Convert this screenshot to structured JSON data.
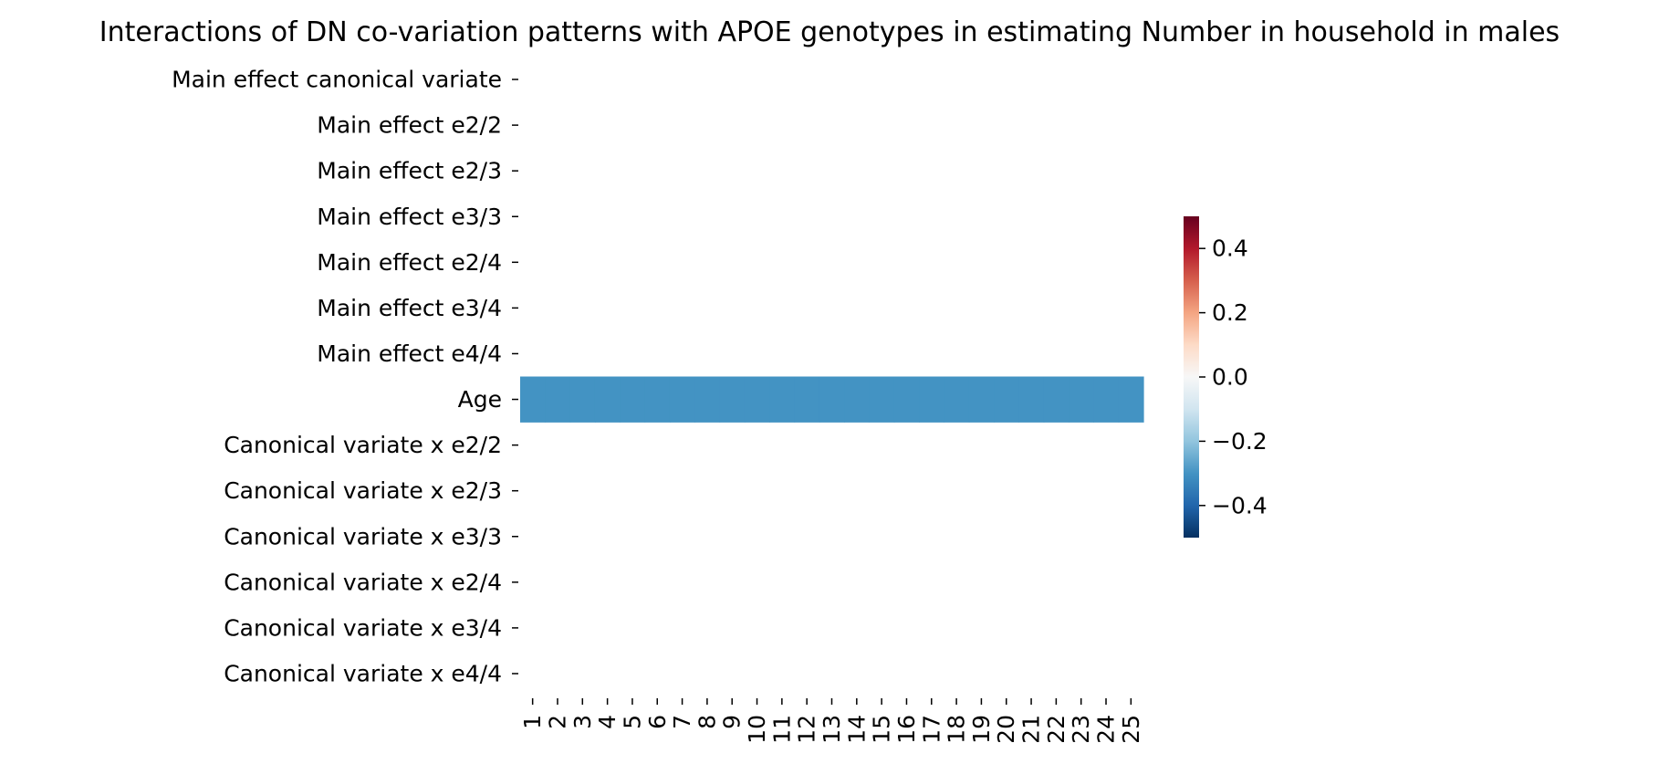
{
  "chart_data": {
    "type": "heatmap",
    "title": "Interactions of DN co-variation patterns with APOE genotypes in estimating Number in household in males",
    "xlabel": "",
    "ylabel": "",
    "columns": [
      "1",
      "2",
      "3",
      "4",
      "5",
      "6",
      "7",
      "8",
      "9",
      "10",
      "11",
      "12",
      "13",
      "14",
      "15",
      "16",
      "17",
      "18",
      "19",
      "20",
      "21",
      "22",
      "23",
      "24",
      "25"
    ],
    "rows": [
      "Main effect canonical variate",
      "Main effect e2/2",
      "Main effect e2/3",
      "Main effect e3/3",
      "Main effect e2/4",
      "Main effect e3/4",
      "Main effect e4/4",
      "Age",
      "Canonical variate x e2/2",
      "Canonical variate x e2/3",
      "Canonical variate x e3/3",
      "Canonical variate x e2/4",
      "Canonical variate x e3/4",
      "Canonical variate x e4/4"
    ],
    "values": [
      [
        null,
        null,
        null,
        null,
        null,
        null,
        null,
        null,
        null,
        null,
        null,
        null,
        null,
        null,
        null,
        null,
        null,
        null,
        null,
        null,
        null,
        null,
        null,
        null,
        null
      ],
      [
        null,
        null,
        null,
        null,
        null,
        null,
        null,
        null,
        null,
        null,
        null,
        null,
        null,
        null,
        null,
        null,
        null,
        null,
        null,
        null,
        null,
        null,
        null,
        null,
        null
      ],
      [
        null,
        null,
        null,
        null,
        null,
        null,
        null,
        null,
        null,
        null,
        null,
        null,
        null,
        null,
        null,
        null,
        null,
        null,
        null,
        null,
        null,
        null,
        null,
        null,
        null
      ],
      [
        null,
        null,
        null,
        null,
        null,
        null,
        null,
        null,
        null,
        null,
        null,
        null,
        null,
        null,
        null,
        null,
        null,
        null,
        null,
        null,
        null,
        null,
        null,
        null,
        null
      ],
      [
        null,
        null,
        null,
        null,
        null,
        null,
        null,
        null,
        null,
        null,
        null,
        null,
        null,
        null,
        null,
        null,
        null,
        null,
        null,
        null,
        null,
        null,
        null,
        null,
        null
      ],
      [
        null,
        null,
        null,
        null,
        null,
        null,
        null,
        null,
        null,
        null,
        null,
        null,
        null,
        null,
        null,
        null,
        null,
        null,
        null,
        null,
        null,
        null,
        null,
        null,
        null
      ],
      [
        null,
        null,
        null,
        null,
        null,
        null,
        null,
        null,
        null,
        null,
        null,
        null,
        null,
        null,
        null,
        null,
        null,
        null,
        null,
        null,
        null,
        null,
        null,
        null,
        null
      ],
      [
        -0.3,
        -0.3,
        -0.3,
        -0.3,
        -0.3,
        -0.3,
        -0.3,
        -0.3,
        -0.3,
        -0.3,
        -0.3,
        -0.3,
        -0.3,
        -0.3,
        -0.3,
        -0.3,
        -0.3,
        -0.3,
        -0.3,
        -0.3,
        -0.3,
        -0.3,
        -0.3,
        -0.3,
        -0.3
      ],
      [
        null,
        null,
        null,
        null,
        null,
        null,
        null,
        null,
        null,
        null,
        null,
        null,
        null,
        null,
        null,
        null,
        null,
        null,
        null,
        null,
        null,
        null,
        null,
        null,
        null
      ],
      [
        null,
        null,
        null,
        null,
        null,
        null,
        null,
        null,
        null,
        null,
        null,
        null,
        null,
        null,
        null,
        null,
        null,
        null,
        null,
        null,
        null,
        null,
        null,
        null,
        null
      ],
      [
        null,
        null,
        null,
        null,
        null,
        null,
        null,
        null,
        null,
        null,
        null,
        null,
        null,
        null,
        null,
        null,
        null,
        null,
        null,
        null,
        null,
        null,
        null,
        null,
        null
      ],
      [
        null,
        null,
        null,
        null,
        null,
        null,
        null,
        null,
        null,
        null,
        null,
        null,
        null,
        null,
        null,
        null,
        null,
        null,
        null,
        null,
        null,
        null,
        null,
        null,
        null
      ],
      [
        null,
        null,
        null,
        null,
        null,
        null,
        null,
        null,
        null,
        null,
        null,
        null,
        null,
        null,
        null,
        null,
        null,
        null,
        null,
        null,
        null,
        null,
        null,
        null,
        null
      ],
      [
        null,
        null,
        null,
        null,
        null,
        null,
        null,
        null,
        null,
        null,
        null,
        null,
        null,
        null,
        null,
        null,
        null,
        null,
        null,
        null,
        null,
        null,
        null,
        null,
        null
      ]
    ],
    "colorbar": {
      "colormap": "RdBu_r",
      "vmin": -0.5,
      "vmax": 0.5,
      "ticks": [
        0.4,
        0.2,
        0.0,
        -0.2,
        -0.4
      ],
      "tick_labels": [
        "0.4",
        "0.2",
        "0.0",
        "−0.2",
        "−0.4"
      ],
      "stops": [
        "#053061",
        "#2166ac",
        "#4393c3",
        "#92c5de",
        "#d1e5f0",
        "#f7f7f7",
        "#fddbc7",
        "#f4a582",
        "#d6604d",
        "#b2182b",
        "#67001f"
      ]
    },
    "grid": false,
    "legend": "colorbar right"
  }
}
